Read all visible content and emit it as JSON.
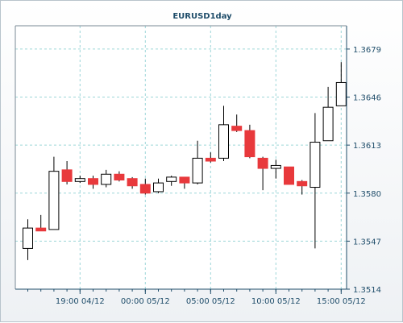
{
  "chart_data": {
    "type": "candlestick",
    "title": "EURUSD1day",
    "xlabel": "",
    "ylabel": "",
    "ylim": [
      1.3514,
      1.3695
    ],
    "y_ticks": [
      "1.3679",
      "1.3646",
      "1.3613",
      "1.3580",
      "1.3547",
      "1.3514"
    ],
    "x_ticks": [
      {
        "label": "19:00 04/12",
        "index": 4
      },
      {
        "label": "00:00 05/12",
        "index": 9
      },
      {
        "label": "05:00 05/12",
        "index": 14
      },
      {
        "label": "10:00 05/12",
        "index": 19
      },
      {
        "label": "15:00 05/12",
        "index": 24
      }
    ],
    "grid": true,
    "bull_color": "#ffffff",
    "bear_color": "#e8393c",
    "candles": [
      {
        "open": 1.3542,
        "high": 1.3562,
        "low": 1.3534,
        "close": 1.3556
      },
      {
        "open": 1.3556,
        "high": 1.3565,
        "low": 1.3554,
        "close": 1.3554
      },
      {
        "open": 1.3555,
        "high": 1.3605,
        "low": 1.3555,
        "close": 1.3595
      },
      {
        "open": 1.3596,
        "high": 1.3602,
        "low": 1.3586,
        "close": 1.3588
      },
      {
        "open": 1.3588,
        "high": 1.3592,
        "low": 1.3587,
        "close": 1.359
      },
      {
        "open": 1.359,
        "high": 1.3592,
        "low": 1.3583,
        "close": 1.3586
      },
      {
        "open": 1.3586,
        "high": 1.3596,
        "low": 1.3584,
        "close": 1.3593
      },
      {
        "open": 1.3593,
        "high": 1.3595,
        "low": 1.3588,
        "close": 1.3589
      },
      {
        "open": 1.359,
        "high": 1.3591,
        "low": 1.3583,
        "close": 1.3585
      },
      {
        "open": 1.3586,
        "high": 1.359,
        "low": 1.3579,
        "close": 1.358
      },
      {
        "open": 1.3581,
        "high": 1.359,
        "low": 1.358,
        "close": 1.3587
      },
      {
        "open": 1.3588,
        "high": 1.3592,
        "low": 1.3585,
        "close": 1.3591
      },
      {
        "open": 1.3591,
        "high": 1.3591,
        "low": 1.3583,
        "close": 1.3587
      },
      {
        "open": 1.3587,
        "high": 1.3616,
        "low": 1.3586,
        "close": 1.3604
      },
      {
        "open": 1.3604,
        "high": 1.3608,
        "low": 1.3601,
        "close": 1.3602
      },
      {
        "open": 1.3604,
        "high": 1.364,
        "low": 1.3602,
        "close": 1.3627
      },
      {
        "open": 1.3626,
        "high": 1.3634,
        "low": 1.3622,
        "close": 1.3623
      },
      {
        "open": 1.3623,
        "high": 1.3627,
        "low": 1.3604,
        "close": 1.3605
      },
      {
        "open": 1.3604,
        "high": 1.3605,
        "low": 1.3582,
        "close": 1.3597
      },
      {
        "open": 1.3597,
        "high": 1.3603,
        "low": 1.359,
        "close": 1.3599
      },
      {
        "open": 1.3598,
        "high": 1.3598,
        "low": 1.3586,
        "close": 1.3586
      },
      {
        "open": 1.3588,
        "high": 1.3589,
        "low": 1.3579,
        "close": 1.3585
      },
      {
        "open": 1.3584,
        "high": 1.3635,
        "low": 1.3542,
        "close": 1.3615
      },
      {
        "open": 1.3616,
        "high": 1.3653,
        "low": 1.3616,
        "close": 1.3639
      },
      {
        "open": 1.364,
        "high": 1.367,
        "low": 1.364,
        "close": 1.3656
      }
    ]
  }
}
